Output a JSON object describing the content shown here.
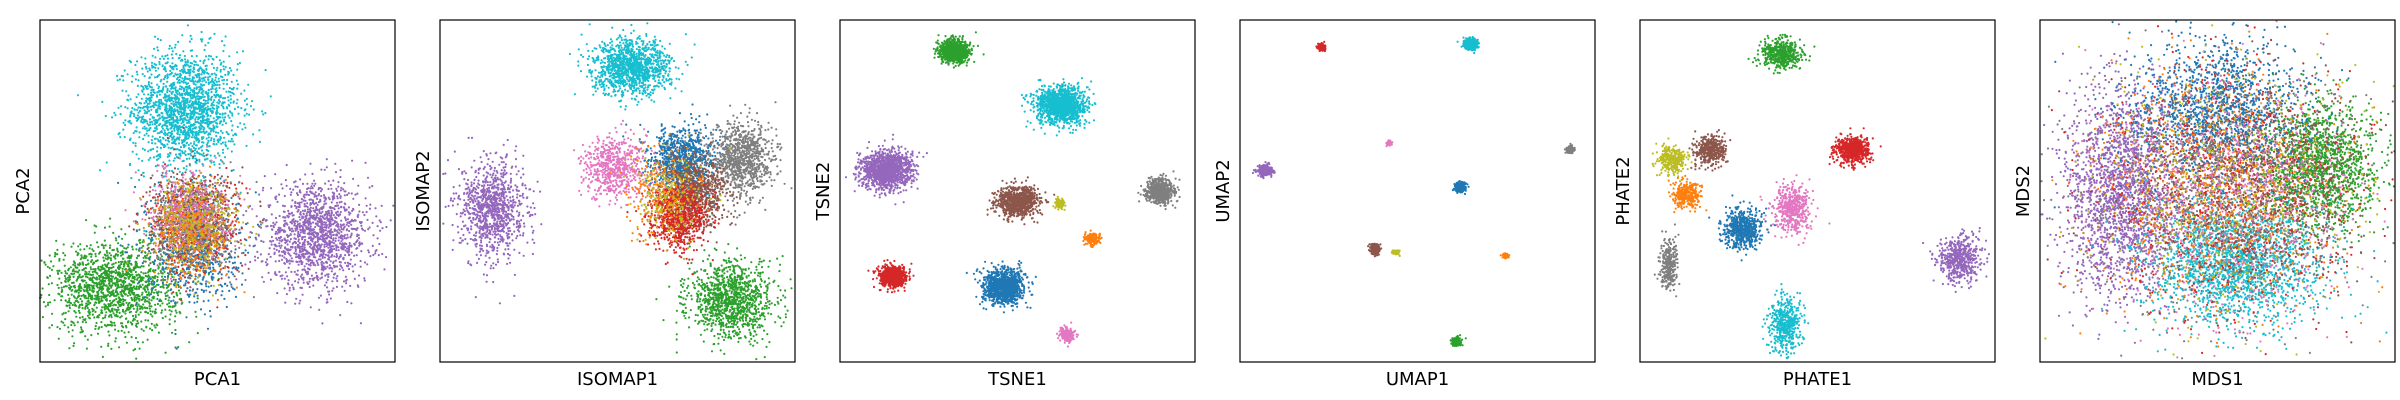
{
  "figure": {
    "palette": {
      "c0": "#1f77b4",
      "c1": "#ff7f0e",
      "c2": "#2ca02c",
      "c3": "#d62728",
      "c4": "#9467bd",
      "c5": "#8c564b",
      "c6": "#e377c2",
      "c7": "#7f7f7f",
      "c8": "#bcbd22",
      "c9": "#17becf"
    }
  },
  "chart_data": [
    {
      "type": "scatter",
      "xlabel": "PCA1",
      "ylabel": "PCA2",
      "xlim": [
        0,
        10
      ],
      "ylim": [
        0,
        10
      ],
      "ticks": "none",
      "grid": false,
      "clusters": [
        {
          "color": "c9",
          "cx": 4.1,
          "cy": 7.4,
          "sx": 0.75,
          "sy": 0.85,
          "n": 1800
        },
        {
          "color": "c4",
          "cx": 7.8,
          "cy": 3.7,
          "sx": 0.75,
          "sy": 0.75,
          "n": 1400
        },
        {
          "color": "c2",
          "cx": 2.1,
          "cy": 2.2,
          "sx": 0.9,
          "sy": 0.65,
          "n": 1500
        },
        {
          "color": "c0",
          "cx": 4.3,
          "cy": 3.4,
          "sx": 0.65,
          "sy": 0.85,
          "n": 700
        },
        {
          "color": "c3",
          "cx": 4.4,
          "cy": 4.0,
          "sx": 0.6,
          "sy": 0.7,
          "n": 500
        },
        {
          "color": "c5",
          "cx": 4.3,
          "cy": 4.2,
          "sx": 0.6,
          "sy": 0.7,
          "n": 500
        },
        {
          "color": "c7",
          "cx": 4.4,
          "cy": 3.9,
          "sx": 0.6,
          "sy": 0.7,
          "n": 450
        },
        {
          "color": "c6",
          "cx": 4.2,
          "cy": 4.4,
          "sx": 0.55,
          "sy": 0.6,
          "n": 400
        },
        {
          "color": "c1",
          "cx": 4.3,
          "cy": 3.8,
          "sx": 0.6,
          "sy": 0.7,
          "n": 350
        },
        {
          "color": "c8",
          "cx": 4.4,
          "cy": 4.0,
          "sx": 0.6,
          "sy": 0.7,
          "n": 300
        }
      ]
    },
    {
      "type": "scatter",
      "xlabel": "ISOMAP1",
      "ylabel": "ISOMAP2",
      "xlim": [
        0,
        10
      ],
      "ylim": [
        0,
        10
      ],
      "ticks": "none",
      "grid": false,
      "clusters": [
        {
          "color": "c9",
          "cx": 5.4,
          "cy": 8.6,
          "sx": 0.55,
          "sy": 0.4,
          "n": 1200
        },
        {
          "color": "c4",
          "cx": 1.5,
          "cy": 4.5,
          "sx": 0.45,
          "sy": 0.7,
          "n": 1000
        },
        {
          "color": "c2",
          "cx": 8.2,
          "cy": 1.8,
          "sx": 0.6,
          "sy": 0.55,
          "n": 1100
        },
        {
          "color": "c0",
          "cx": 6.8,
          "cy": 5.9,
          "sx": 0.45,
          "sy": 0.5,
          "n": 900
        },
        {
          "color": "c7",
          "cx": 8.5,
          "cy": 5.9,
          "sx": 0.45,
          "sy": 0.55,
          "n": 900
        },
        {
          "color": "c5",
          "cx": 7.2,
          "cy": 5.0,
          "sx": 0.45,
          "sy": 0.5,
          "n": 800
        },
        {
          "color": "c3",
          "cx": 6.7,
          "cy": 4.2,
          "sx": 0.4,
          "sy": 0.45,
          "n": 800
        },
        {
          "color": "c6",
          "cx": 4.9,
          "cy": 5.7,
          "sx": 0.45,
          "sy": 0.45,
          "n": 600
        },
        {
          "color": "c1",
          "cx": 6.3,
          "cy": 5.0,
          "sx": 0.5,
          "sy": 0.6,
          "n": 250
        },
        {
          "color": "c8",
          "cx": 6.5,
          "cy": 4.8,
          "sx": 0.5,
          "sy": 0.6,
          "n": 200
        }
      ]
    },
    {
      "type": "scatter",
      "xlabel": "TSNE1",
      "ylabel": "TSNE2",
      "xlim": [
        0,
        10
      ],
      "ylim": [
        0,
        10
      ],
      "ticks": "none",
      "grid": false,
      "clusters": [
        {
          "color": "c2",
          "cx": 3.2,
          "cy": 9.1,
          "sx": 0.2,
          "sy": 0.17,
          "n": 900
        },
        {
          "color": "c9",
          "cx": 6.2,
          "cy": 7.5,
          "sx": 0.35,
          "sy": 0.28,
          "n": 1300
        },
        {
          "color": "c4",
          "cx": 1.3,
          "cy": 5.6,
          "sx": 0.35,
          "sy": 0.28,
          "n": 1300
        },
        {
          "color": "c5",
          "cx": 5.0,
          "cy": 4.7,
          "sx": 0.28,
          "sy": 0.22,
          "n": 900
        },
        {
          "color": "c7",
          "cx": 9.0,
          "cy": 5.0,
          "sx": 0.2,
          "sy": 0.17,
          "n": 700
        },
        {
          "color": "c8",
          "cx": 6.2,
          "cy": 4.6,
          "sx": 0.07,
          "sy": 0.07,
          "n": 120
        },
        {
          "color": "c1",
          "cx": 7.1,
          "cy": 3.6,
          "sx": 0.1,
          "sy": 0.08,
          "n": 180
        },
        {
          "color": "c3",
          "cx": 1.5,
          "cy": 2.5,
          "sx": 0.18,
          "sy": 0.15,
          "n": 700
        },
        {
          "color": "c0",
          "cx": 4.6,
          "cy": 2.2,
          "sx": 0.28,
          "sy": 0.25,
          "n": 1100
        },
        {
          "color": "c6",
          "cx": 6.4,
          "cy": 0.8,
          "sx": 0.1,
          "sy": 0.1,
          "n": 200
        }
      ]
    },
    {
      "type": "scatter",
      "xlabel": "UMAP1",
      "ylabel": "UMAP2",
      "xlim": [
        0,
        10
      ],
      "ylim": [
        0,
        10
      ],
      "ticks": "none",
      "grid": false,
      "clusters": [
        {
          "color": "c3",
          "cx": 2.3,
          "cy": 9.2,
          "sx": 0.05,
          "sy": 0.05,
          "n": 160
        },
        {
          "color": "c9",
          "cx": 6.5,
          "cy": 9.3,
          "sx": 0.09,
          "sy": 0.09,
          "n": 400
        },
        {
          "color": "c4",
          "cx": 0.7,
          "cy": 5.6,
          "sx": 0.09,
          "sy": 0.08,
          "n": 320
        },
        {
          "color": "c6",
          "cx": 4.2,
          "cy": 6.4,
          "sx": 0.04,
          "sy": 0.03,
          "n": 70
        },
        {
          "color": "c7",
          "cx": 9.3,
          "cy": 6.2,
          "sx": 0.05,
          "sy": 0.05,
          "n": 160
        },
        {
          "color": "c0",
          "cx": 6.2,
          "cy": 5.1,
          "sx": 0.07,
          "sy": 0.07,
          "n": 260
        },
        {
          "color": "c5",
          "cx": 3.8,
          "cy": 3.3,
          "sx": 0.07,
          "sy": 0.07,
          "n": 220
        },
        {
          "color": "c8",
          "cx": 4.4,
          "cy": 3.2,
          "sx": 0.05,
          "sy": 0.03,
          "n": 90
        },
        {
          "color": "c1",
          "cx": 7.5,
          "cy": 3.1,
          "sx": 0.04,
          "sy": 0.03,
          "n": 100
        },
        {
          "color": "c2",
          "cx": 6.1,
          "cy": 0.6,
          "sx": 0.06,
          "sy": 0.06,
          "n": 170
        }
      ]
    },
    {
      "type": "scatter",
      "xlabel": "PHATE1",
      "ylabel": "PHATE2",
      "xlim": [
        0,
        10
      ],
      "ylim": [
        0,
        10
      ],
      "ticks": "none",
      "grid": false,
      "clusters": [
        {
          "color": "c2",
          "cx": 4.0,
          "cy": 9.0,
          "sx": 0.28,
          "sy": 0.22,
          "n": 500
        },
        {
          "color": "c3",
          "cx": 6.0,
          "cy": 6.2,
          "sx": 0.25,
          "sy": 0.2,
          "n": 600
        },
        {
          "color": "c5",
          "cx": 2.0,
          "cy": 6.2,
          "sx": 0.22,
          "sy": 0.22,
          "n": 400
        },
        {
          "color": "c8",
          "cx": 0.9,
          "cy": 5.9,
          "sx": 0.2,
          "sy": 0.2,
          "n": 300
        },
        {
          "color": "c1",
          "cx": 1.3,
          "cy": 4.9,
          "sx": 0.2,
          "sy": 0.2,
          "n": 300
        },
        {
          "color": "c6",
          "cx": 4.3,
          "cy": 4.5,
          "sx": 0.25,
          "sy": 0.35,
          "n": 500
        },
        {
          "color": "c0",
          "cx": 2.9,
          "cy": 3.9,
          "sx": 0.28,
          "sy": 0.28,
          "n": 600
        },
        {
          "color": "c7",
          "cx": 0.8,
          "cy": 2.8,
          "sx": 0.12,
          "sy": 0.35,
          "n": 300
        },
        {
          "color": "c4",
          "cx": 9.0,
          "cy": 3.0,
          "sx": 0.3,
          "sy": 0.35,
          "n": 500
        },
        {
          "color": "c9",
          "cx": 4.1,
          "cy": 1.1,
          "sx": 0.22,
          "sy": 0.4,
          "n": 500
        }
      ]
    },
    {
      "type": "scatter",
      "xlabel": "MDS1",
      "ylabel": "MDS2",
      "xlim": [
        0,
        10
      ],
      "ylim": [
        0,
        10
      ],
      "ticks": "none",
      "grid": false,
      "clusters": [
        {
          "color": "c4",
          "cx": 2.3,
          "cy": 5.0,
          "sx": 0.8,
          "sy": 1.5,
          "n": 2000
        },
        {
          "color": "c2",
          "cx": 7.9,
          "cy": 5.7,
          "sx": 0.8,
          "sy": 0.9,
          "n": 1500
        },
        {
          "color": "c9",
          "cx": 5.5,
          "cy": 2.9,
          "sx": 1.2,
          "sy": 0.9,
          "n": 2000
        },
        {
          "color": "c0",
          "cx": 5.0,
          "cy": 7.2,
          "sx": 1.2,
          "sy": 1.1,
          "n": 1600
        },
        {
          "color": "c3",
          "cx": 5.3,
          "cy": 5.0,
          "sx": 1.7,
          "sy": 1.7,
          "n": 1000
        },
        {
          "color": "c5",
          "cx": 6.0,
          "cy": 5.0,
          "sx": 1.5,
          "sy": 1.5,
          "n": 900
        },
        {
          "color": "c7",
          "cx": 5.2,
          "cy": 5.0,
          "sx": 1.8,
          "sy": 1.8,
          "n": 800
        },
        {
          "color": "c1",
          "cx": 5.0,
          "cy": 5.0,
          "sx": 1.8,
          "sy": 1.8,
          "n": 700
        },
        {
          "color": "c6",
          "cx": 5.2,
          "cy": 4.8,
          "sx": 1.7,
          "sy": 1.7,
          "n": 700
        },
        {
          "color": "c8",
          "cx": 5.2,
          "cy": 5.0,
          "sx": 1.8,
          "sy": 1.8,
          "n": 600
        }
      ]
    }
  ]
}
